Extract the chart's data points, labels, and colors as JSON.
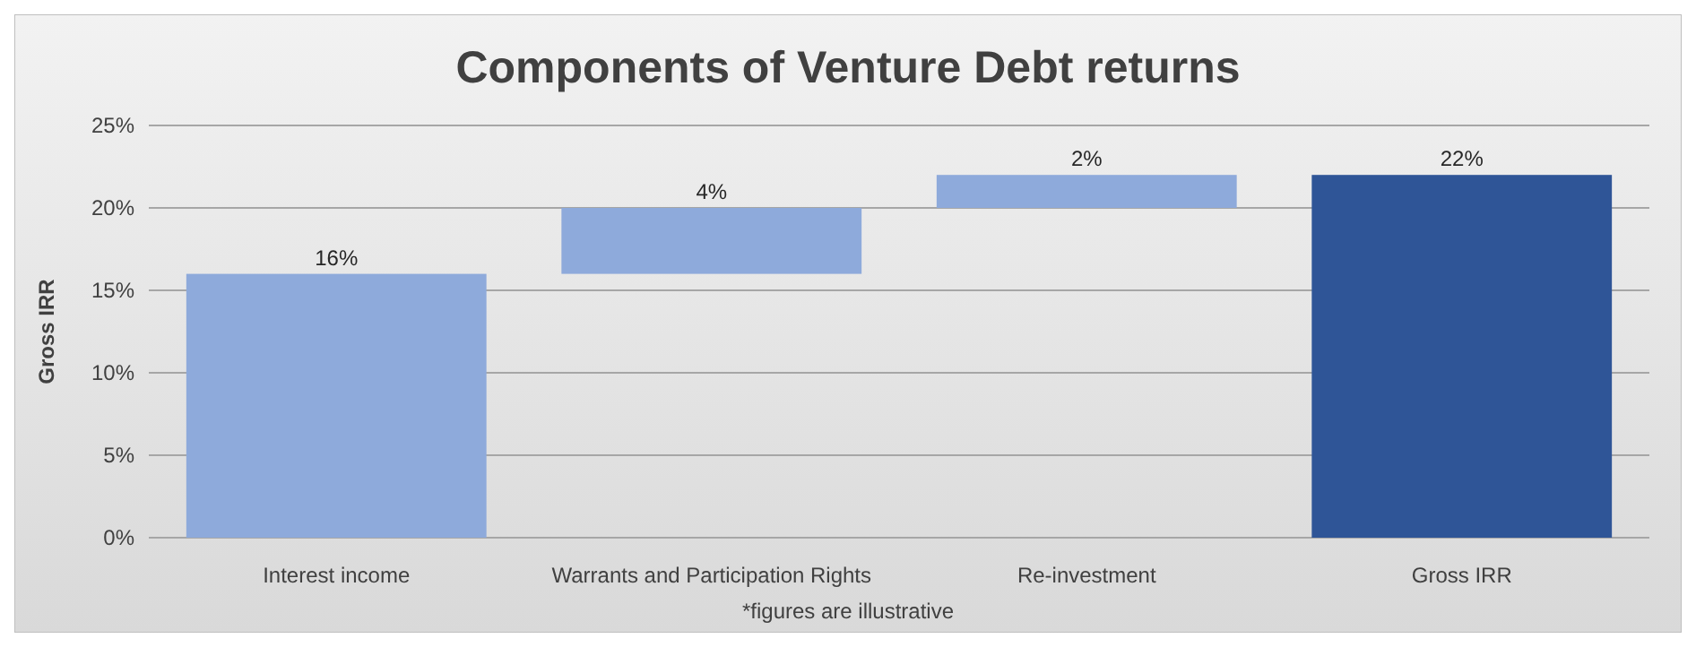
{
  "chart_data": {
    "type": "bar",
    "title": "Components of Venture Debt returns",
    "ylabel": "Gross IRR",
    "categories": [
      "Interest income",
      "Warrants and Participation Rights",
      "Re-investment",
      "Gross IRR"
    ],
    "values": [
      16,
      4,
      2,
      22
    ],
    "base": [
      0,
      16,
      20,
      0
    ],
    "colors": [
      "#8eaadb",
      "#8eaadb",
      "#8eaadb",
      "#2f5597"
    ],
    "value_labels": [
      "16%",
      "4%",
      "2%",
      "22%"
    ],
    "ylim": [
      0,
      25
    ],
    "yticks": [
      {
        "value": 0,
        "label": "0%"
      },
      {
        "value": 5,
        "label": "5%"
      },
      {
        "value": 10,
        "label": "10%"
      },
      {
        "value": 15,
        "label": "15%"
      },
      {
        "value": 20,
        "label": "20%"
      },
      {
        "value": 25,
        "label": "25%"
      }
    ],
    "grid": "y",
    "annotations": [
      "*figures are illustrative"
    ]
  }
}
